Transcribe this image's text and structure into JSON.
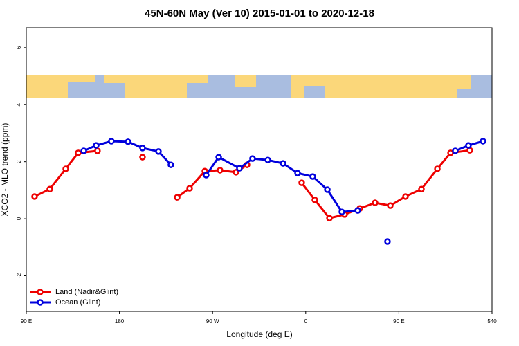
{
  "chart_data": {
    "type": "line",
    "title": "45N-60N May (Ver 10)   2015-01-01 to 2020-12-18",
    "xlabel": "Longitude (deg E)",
    "ylabel": "XCO2 - MLO trend (ppm)",
    "xlim": [
      90,
      540
    ],
    "ylim": [
      -3.25,
      6.7
    ],
    "xticks": [
      {
        "value": 90,
        "label": "90 E"
      },
      180,
      {
        "value": 270,
        "label": "90 W"
      },
      {
        "value": 360,
        "label": "0"
      },
      {
        "value": 450,
        "label": "90 E"
      },
      540
    ],
    "yticks": [
      -2,
      0,
      2,
      4,
      6
    ],
    "legend": "bottom-left",
    "series": [
      {
        "name": "Land (Nadir&Glint)",
        "color": "#ee0000",
        "x": [
          98.0,
          112.7,
          128.1,
          140.1,
          158.8,
          null,
          202.3,
          null,
          235.8,
          247.8,
          262.5,
          277.2,
          292.6,
          303.3,
          null,
          356.1,
          368.8,
          382.9,
          397.6,
          412.3,
          427.0,
          441.7,
          456.4,
          471.8,
          487.2,
          499.9,
          518.6
        ],
        "values": [
          0.78,
          1.04,
          1.75,
          2.31,
          2.38,
          null,
          2.16,
          null,
          0.75,
          1.07,
          1.67,
          1.7,
          1.63,
          1.89,
          null,
          1.26,
          0.66,
          0.02,
          0.15,
          0.36,
          0.56,
          0.46,
          0.78,
          1.04,
          1.75,
          2.31,
          2.4
        ]
      },
      {
        "name": "Ocean (Glint)",
        "color": "#0000dd",
        "x": [
          145.5,
          157.5,
          172.2,
          188.3,
          202.3,
          217.7,
          229.7,
          null,
          263.8,
          275.9,
          295.9,
          308.6,
          323.4,
          338.1,
          352.1,
          366.8,
          380.9,
          394.9,
          410.3,
          null,
          439.0,
          null,
          504.5,
          517.2,
          531.3
        ],
        "values": [
          2.38,
          2.57,
          2.72,
          2.7,
          2.48,
          2.36,
          1.89,
          null,
          1.53,
          2.16,
          1.77,
          2.11,
          2.06,
          1.94,
          1.6,
          1.48,
          1.02,
          0.24,
          0.29,
          null,
          -0.8,
          null,
          2.38,
          2.57,
          2.72
        ]
      }
    ]
  }
}
